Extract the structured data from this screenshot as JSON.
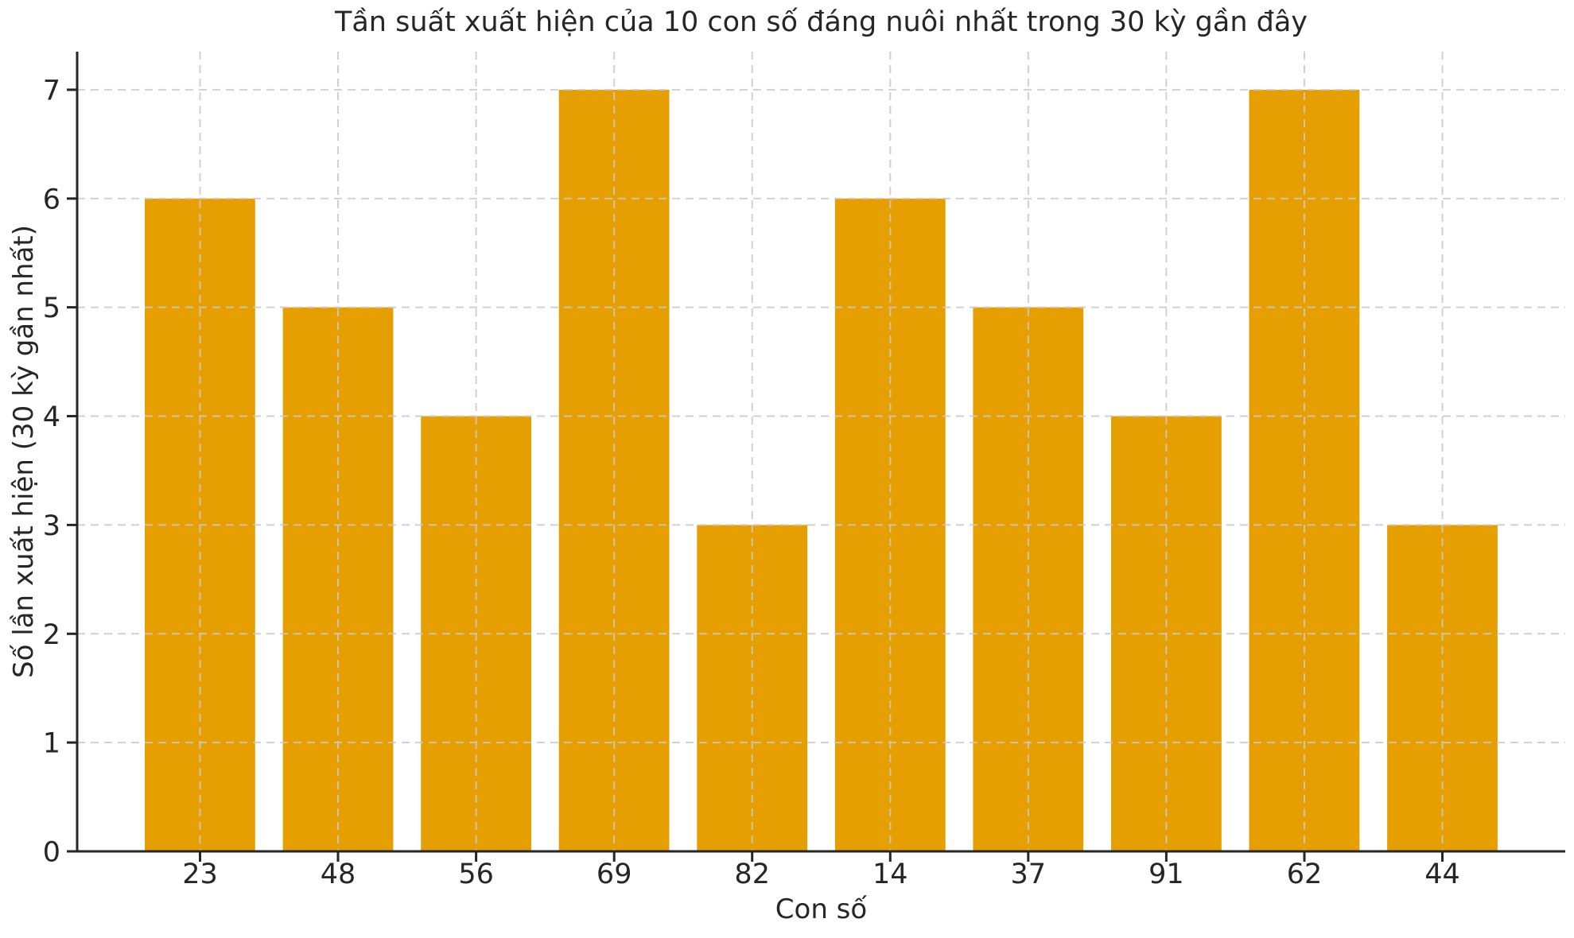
{
  "chart_data": {
    "type": "bar",
    "title": "Tần suất xuất hiện của 10 con số đáng nuôi nhất trong 30 kỳ gần đây",
    "xlabel": "Con số",
    "ylabel": "Số lần xuất hiện (30 kỳ gần nhất)",
    "categories": [
      "23",
      "48",
      "56",
      "69",
      "82",
      "14",
      "37",
      "91",
      "62",
      "44"
    ],
    "values": [
      6,
      5,
      4,
      7,
      3,
      6,
      5,
      4,
      7,
      3
    ],
    "yticks": [
      0,
      1,
      2,
      3,
      4,
      5,
      6,
      7
    ],
    "ylim": [
      0,
      7.35
    ],
    "grid": true,
    "grid_style": "dashed",
    "grid_on_top_of_bars": true,
    "legend": "none",
    "bar_color": "#E69F00",
    "grid_color": "#c9c9c9",
    "axis_color": "#262626",
    "text_color": "#262626",
    "background_color": "#ffffff"
  }
}
